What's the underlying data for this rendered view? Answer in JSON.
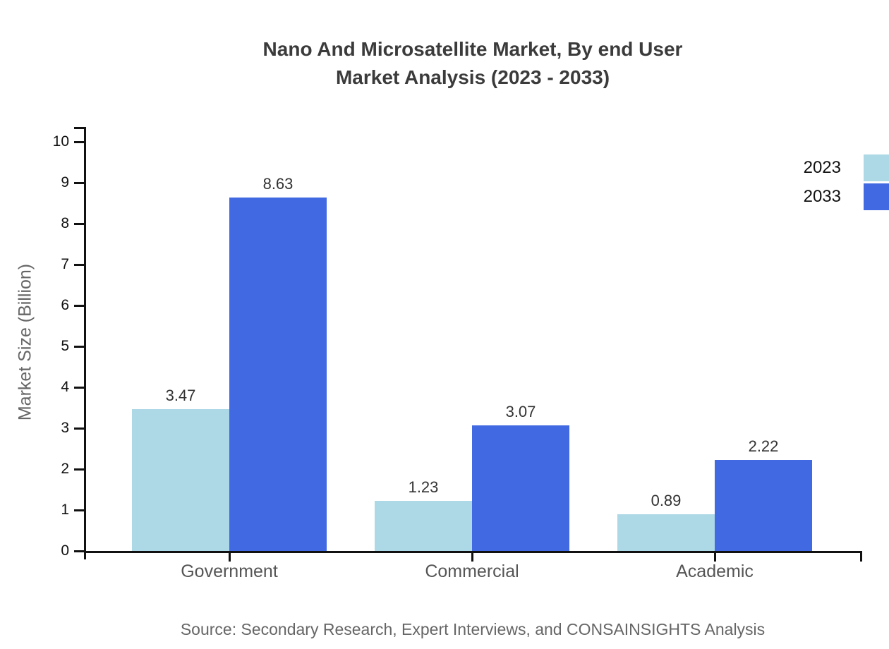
{
  "title": {
    "line1": "Nano And Microsatellite Market, By end User",
    "line2": "Market Analysis (2023 - 2033)"
  },
  "source": "Source: Secondary Research, Expert Interviews, and CONSAINSIGHTS Analysis",
  "legend": {
    "position": "top-right",
    "items": [
      {
        "label": "2023",
        "color": "#ADD8E6"
      },
      {
        "label": "2033",
        "color": "#4169E1"
      }
    ]
  },
  "chart_data": {
    "type": "bar",
    "title": "Nano And Microsatellite Market, By end User Market Analysis (2023 - 2033)",
    "categories": [
      "Government",
      "Commercial",
      "Academic"
    ],
    "series": [
      {
        "name": "2023",
        "color": "#ADD8E6",
        "values": [
          3.47,
          1.23,
          0.89
        ]
      },
      {
        "name": "2033",
        "color": "#4169E1",
        "values": [
          8.63,
          3.07,
          2.22
        ]
      }
    ],
    "value_labels": [
      "3.47",
      "8.63",
      "1.23",
      "3.07",
      "0.89",
      "2.22"
    ],
    "xlabel": "",
    "ylabel": "Market Size (Billion)",
    "ylim": [
      0,
      10
    ],
    "yticks": [
      0,
      1,
      2,
      3,
      4,
      5,
      6,
      7,
      8,
      9,
      10
    ],
    "grid": false,
    "legend_position": "top-right",
    "axis_color": "#111111",
    "value_label_color": "#333333",
    "category_label_color": "#555555"
  }
}
